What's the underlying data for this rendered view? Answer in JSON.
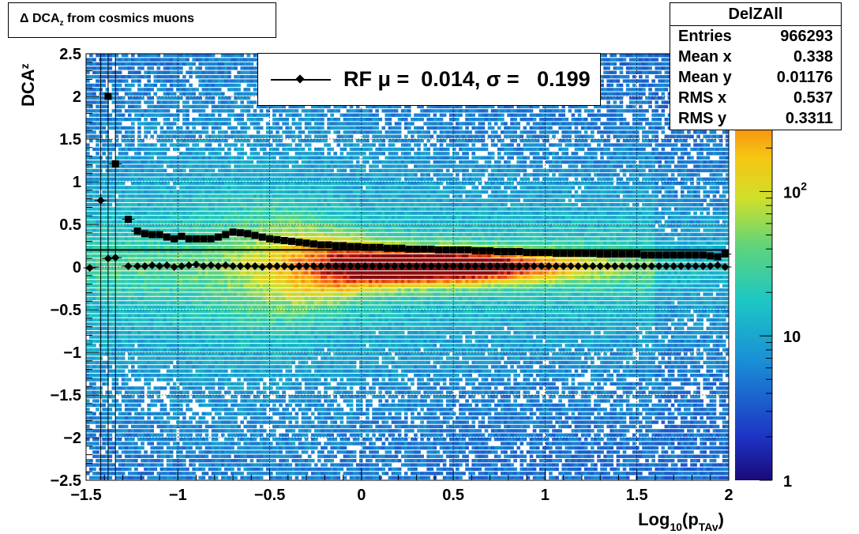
{
  "title": {
    "main": "Δ DCA",
    "sub": "z",
    "rest": " from cosmics muons"
  },
  "stats": {
    "name": "DelZAll",
    "rows": [
      {
        "label": "Entries",
        "value": "966293"
      },
      {
        "label": "Mean x",
        "value": "0.338"
      },
      {
        "label": "Mean y",
        "value": "0.01176"
      },
      {
        "label": "RMS x",
        "value": "0.537"
      },
      {
        "label": "RMS y",
        "value": "0.3311"
      }
    ]
  },
  "legend": {
    "text": "RF μ =  0.014, σ =   0.199"
  },
  "chart_data": {
    "type": "heatmap",
    "xlabel": "Log10(pTAv)",
    "ylabel": "DCAz",
    "xlim": [
      -1.5,
      2
    ],
    "ylim": [
      -2.5,
      2.5
    ],
    "x_ticks": [
      "−1.5",
      "−1",
      "−0.5",
      "0",
      "0.5",
      "1",
      "1.5",
      "2"
    ],
    "y_ticks": [
      "−2.5",
      "−2",
      "−1.5",
      "−1",
      "−0.5",
      "0",
      "0.5",
      "1",
      "1.5",
      "2",
      "2.5"
    ],
    "z_scale": "log",
    "z_ticks": [
      "1",
      "10",
      "10²"
    ],
    "reference_line_y": 0.2,
    "series": [
      {
        "name": "sigma",
        "marker": "square",
        "x": [
          -1.34,
          -1.27,
          -1.22,
          -1.18,
          -1.14,
          -1.1,
          -1.06,
          -1.02,
          -0.98,
          -0.94,
          -0.9,
          -0.86,
          -0.82,
          -0.78,
          -0.74,
          -0.7,
          -0.66,
          -0.62,
          -0.58,
          -0.54,
          -0.5,
          -0.46,
          -0.42,
          -0.38,
          -0.34,
          -0.3,
          -0.26,
          -0.22,
          -0.18,
          -0.14,
          -0.1,
          -0.06,
          -0.02,
          0.02,
          0.06,
          0.1,
          0.14,
          0.18,
          0.22,
          0.26,
          0.3,
          0.34,
          0.38,
          0.42,
          0.46,
          0.5,
          0.54,
          0.58,
          0.62,
          0.66,
          0.7,
          0.74,
          0.78,
          0.82,
          0.86,
          0.9,
          0.94,
          0.98,
          1.02,
          1.06,
          1.1,
          1.14,
          1.18,
          1.22,
          1.26,
          1.3,
          1.34,
          1.38,
          1.42,
          1.46,
          1.5,
          1.54,
          1.58,
          1.62,
          1.66,
          1.7,
          1.74,
          1.78,
          1.82,
          1.86,
          1.9,
          1.94,
          1.98
        ],
        "y": [
          1.21,
          0.56,
          0.42,
          0.39,
          0.38,
          0.38,
          0.35,
          0.33,
          0.36,
          0.33,
          0.33,
          0.33,
          0.33,
          0.35,
          0.38,
          0.41,
          0.4,
          0.39,
          0.37,
          0.35,
          0.33,
          0.32,
          0.31,
          0.3,
          0.29,
          0.28,
          0.27,
          0.26,
          0.26,
          0.25,
          0.25,
          0.24,
          0.24,
          0.23,
          0.23,
          0.23,
          0.22,
          0.22,
          0.22,
          0.21,
          0.21,
          0.21,
          0.21,
          0.2,
          0.2,
          0.2,
          0.2,
          0.2,
          0.19,
          0.19,
          0.19,
          0.18,
          0.18,
          0.18,
          0.18,
          0.17,
          0.17,
          0.17,
          0.17,
          0.16,
          0.16,
          0.16,
          0.16,
          0.16,
          0.16,
          0.15,
          0.15,
          0.15,
          0.15,
          0.15,
          0.15,
          0.14,
          0.14,
          0.14,
          0.14,
          0.14,
          0.14,
          0.14,
          0.14,
          0.14,
          0.13,
          0.12,
          0.15
        ]
      },
      {
        "name": "mean",
        "marker": "diamond",
        "x": [
          -1.48,
          -1.42,
          -1.38,
          -1.34,
          -1.27,
          -1.22,
          -1.18,
          -1.14,
          -1.1,
          -1.06,
          -1.02,
          -0.98,
          -0.94,
          -0.9,
          -0.86,
          -0.82,
          -0.78,
          -0.74,
          -0.7,
          -0.66,
          -0.62,
          -0.58,
          -0.54,
          -0.5,
          -0.46,
          -0.42,
          -0.38,
          -0.34,
          -0.3,
          -0.26,
          -0.22,
          -0.18,
          -0.14,
          -0.1,
          -0.06,
          -0.02,
          0.02,
          0.06,
          0.1,
          0.14,
          0.18,
          0.22,
          0.26,
          0.3,
          0.34,
          0.38,
          0.42,
          0.46,
          0.5,
          0.54,
          0.58,
          0.62,
          0.66,
          0.7,
          0.74,
          0.78,
          0.82,
          0.86,
          0.9,
          0.94,
          0.98,
          1.02,
          1.06,
          1.1,
          1.14,
          1.18,
          1.22,
          1.26,
          1.3,
          1.34,
          1.38,
          1.42,
          1.46,
          1.5,
          1.54,
          1.58,
          1.62,
          1.66,
          1.7,
          1.74,
          1.78,
          1.82,
          1.86,
          1.9,
          1.94,
          1.98
        ],
        "y": [
          -0.01,
          0.78,
          0.1,
          0.11,
          0.01,
          0.01,
          0.01,
          0.02,
          0.01,
          0.02,
          0.0,
          0.01,
          0.02,
          0.03,
          0.01,
          0.02,
          0.01,
          0.02,
          0.01,
          0.01,
          0.01,
          0.01,
          0.0,
          0.01,
          0.01,
          0.01,
          0.0,
          0.01,
          0.01,
          0.01,
          0.01,
          0.01,
          0.01,
          0.01,
          0.01,
          0.01,
          0.01,
          0.01,
          0.01,
          0.01,
          0.01,
          0.01,
          0.01,
          0.01,
          0.01,
          0.01,
          0.01,
          0.01,
          0.01,
          0.01,
          0.01,
          0.01,
          0.01,
          0.01,
          0.01,
          0.01,
          0.01,
          0.01,
          0.01,
          0.01,
          0.01,
          0.01,
          0.01,
          0.01,
          0.01,
          0.01,
          0.01,
          0.01,
          0.01,
          0.01,
          0.01,
          0.01,
          0.01,
          0.01,
          0.01,
          0.01,
          0.01,
          0.01,
          0.01,
          0.01,
          0.01,
          0.01,
          0.01,
          0.01,
          0.02,
          0.0
        ]
      }
    ],
    "outliers": [
      {
        "x": -1.38,
        "y": 2.0,
        "marker": "square"
      }
    ]
  }
}
